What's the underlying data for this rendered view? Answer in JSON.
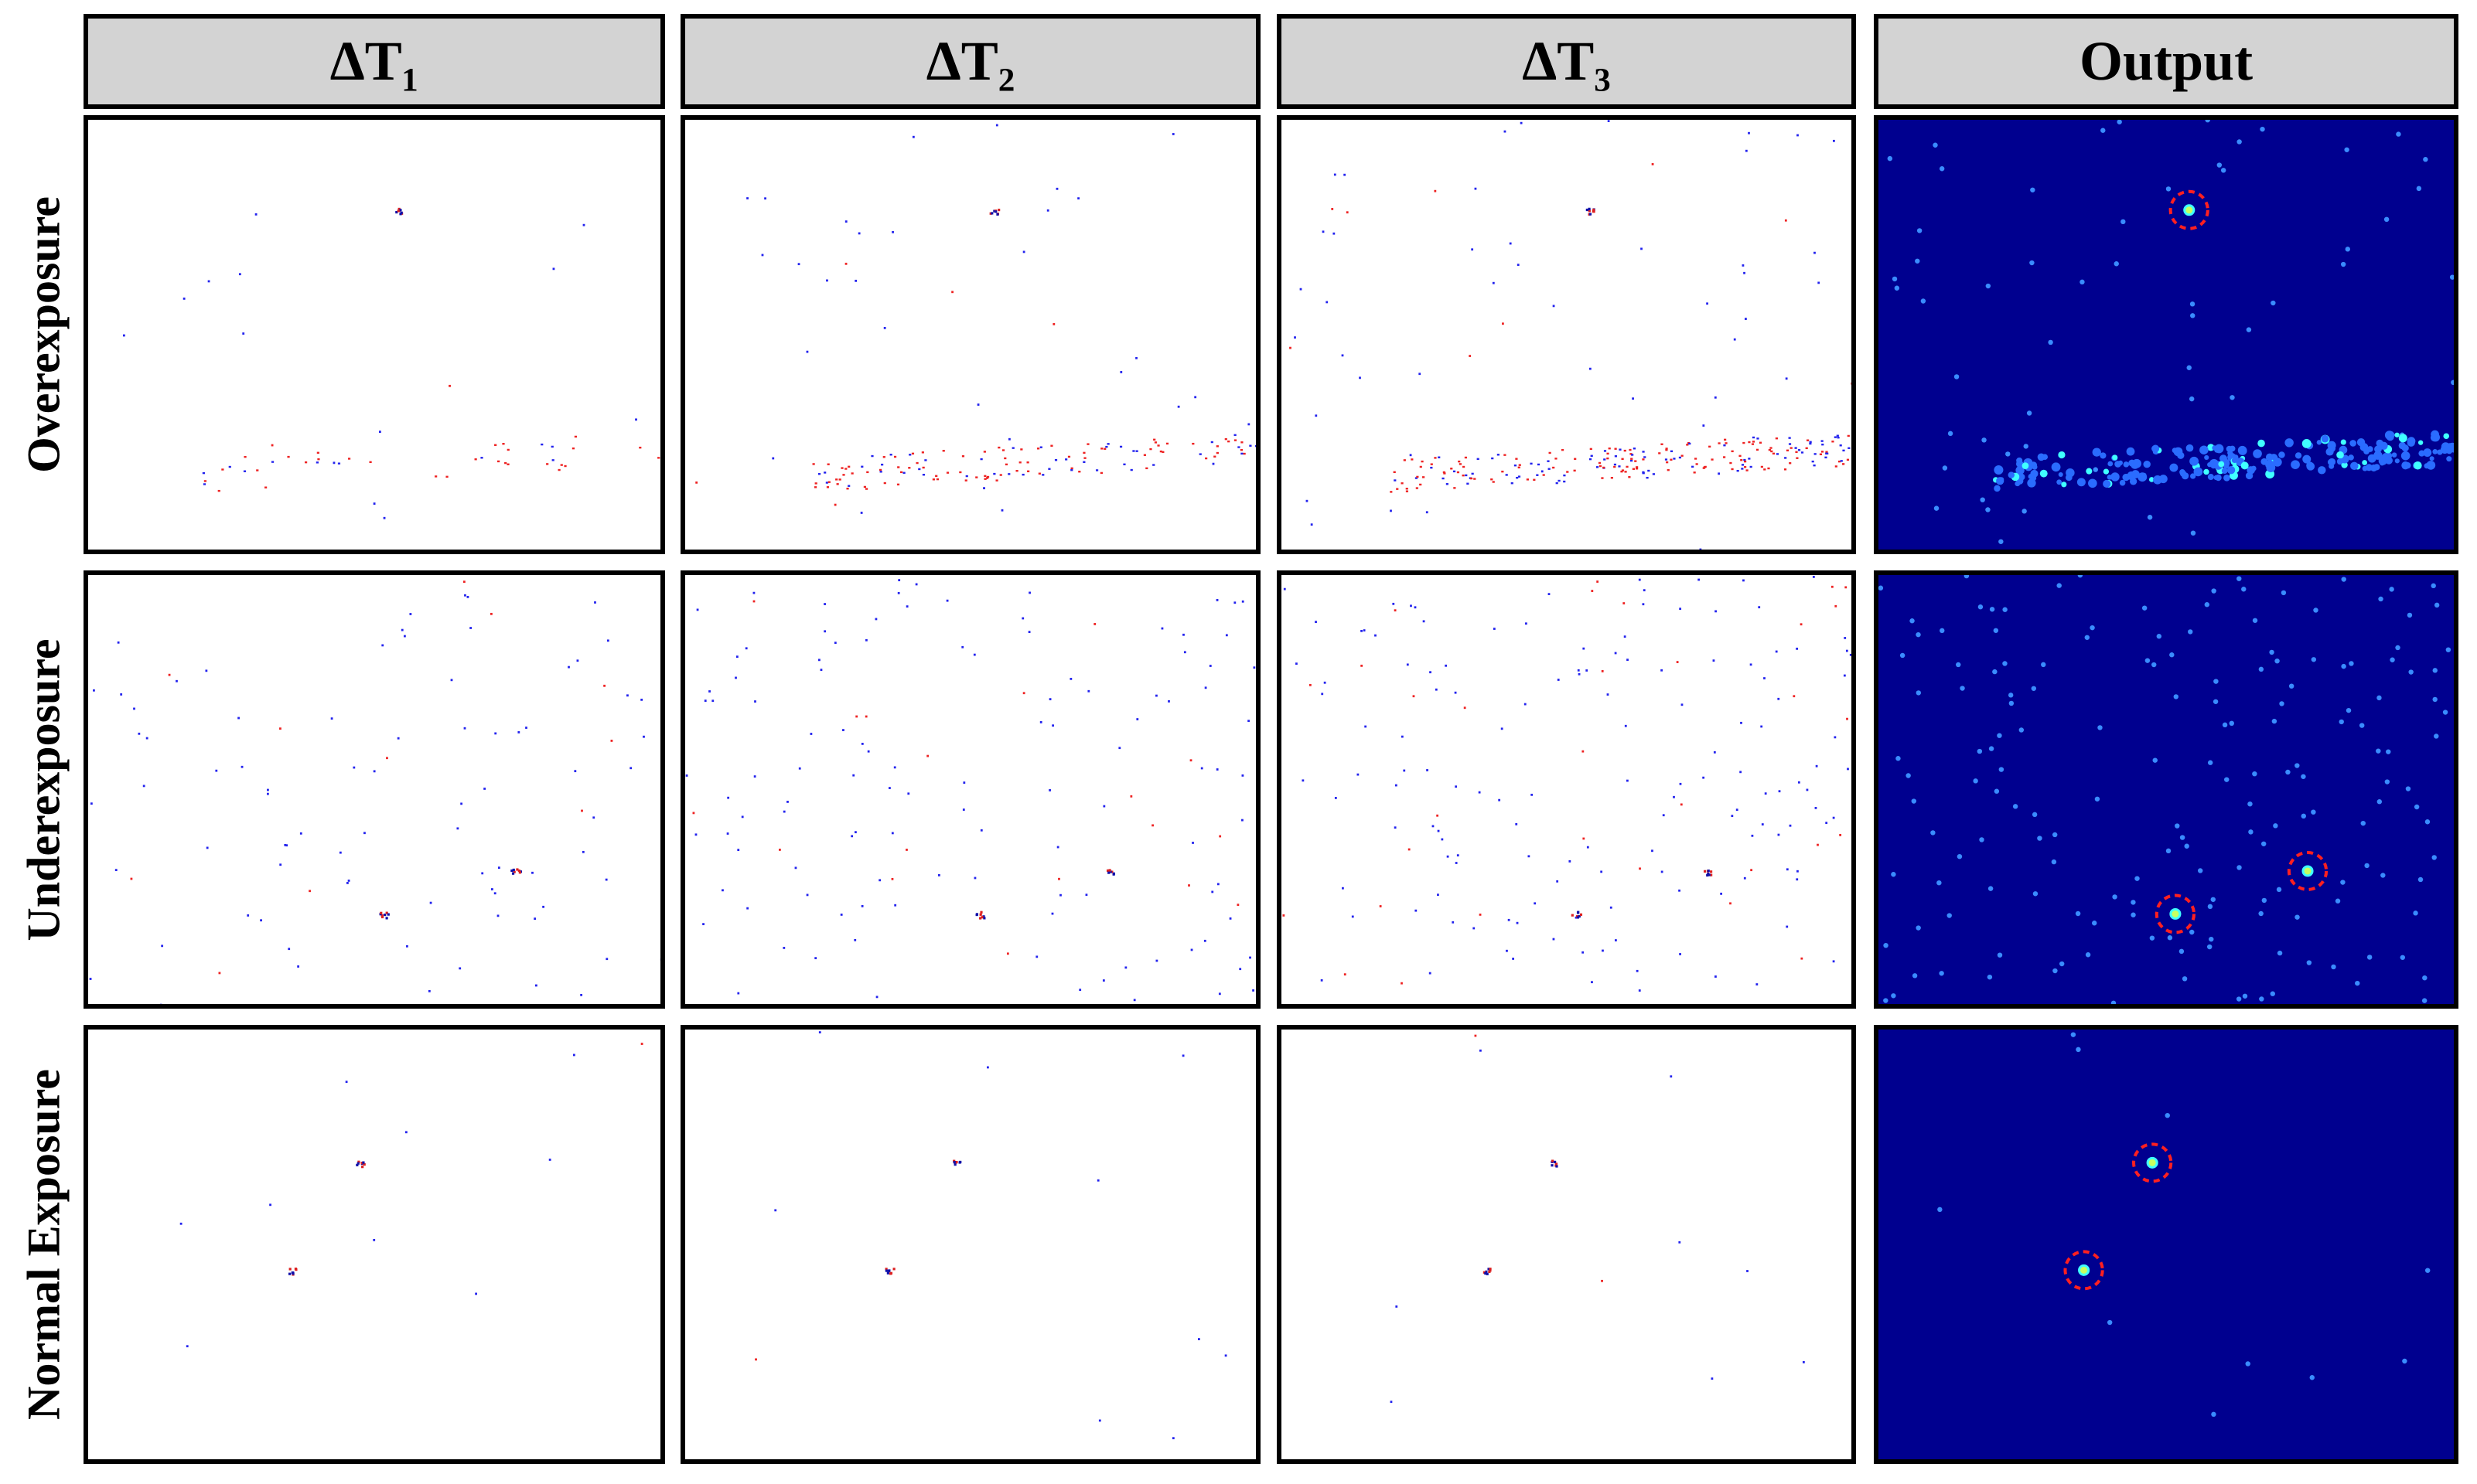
{
  "header": {
    "columns": [
      "ΔT₁",
      "ΔT₂",
      "ΔT₃",
      "Output"
    ]
  },
  "rows": [
    {
      "label": "Overexposure"
    },
    {
      "label": "Underexposure"
    },
    {
      "label": "Normal Exposure"
    }
  ]
}
